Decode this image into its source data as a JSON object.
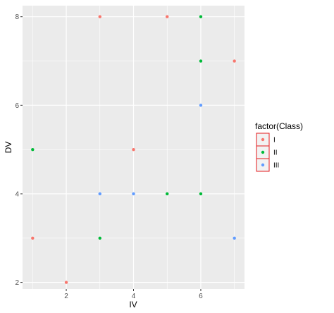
{
  "chart_data": {
    "type": "scatter",
    "title": "",
    "xlabel": "IV",
    "ylabel": "DV",
    "xlim": [
      0.7,
      7.3
    ],
    "ylim": [
      1.85,
      8.25
    ],
    "x_ticks": [
      2,
      4,
      6
    ],
    "y_ticks": [
      2,
      4,
      6,
      8
    ],
    "x_minor_ticks": [
      1,
      3,
      5,
      7
    ],
    "y_minor_ticks": [
      3,
      5,
      7
    ],
    "grid": true,
    "panel_background": "#EBEBEB",
    "grid_color": "#FFFFFF",
    "legend": {
      "title": "factor(Class)",
      "position": "right",
      "box_outline_color": "#E41A1C"
    },
    "series": [
      {
        "name": "I",
        "color": "#F8766D",
        "points": [
          {
            "x": 1,
            "y": 3
          },
          {
            "x": 2,
            "y": 2
          },
          {
            "x": 3,
            "y": 8
          },
          {
            "x": 4,
            "y": 5
          },
          {
            "x": 5,
            "y": 8
          },
          {
            "x": 7,
            "y": 7
          }
        ]
      },
      {
        "name": "II",
        "color": "#00BA38",
        "points": [
          {
            "x": 1,
            "y": 5
          },
          {
            "x": 3,
            "y": 3
          },
          {
            "x": 5,
            "y": 4
          },
          {
            "x": 6,
            "y": 4
          },
          {
            "x": 6,
            "y": 7
          },
          {
            "x": 6,
            "y": 8
          }
        ]
      },
      {
        "name": "III",
        "color": "#619CFF",
        "points": [
          {
            "x": 3,
            "y": 4
          },
          {
            "x": 4,
            "y": 4
          },
          {
            "x": 6,
            "y": 6
          },
          {
            "x": 7,
            "y": 3
          }
        ]
      }
    ]
  }
}
